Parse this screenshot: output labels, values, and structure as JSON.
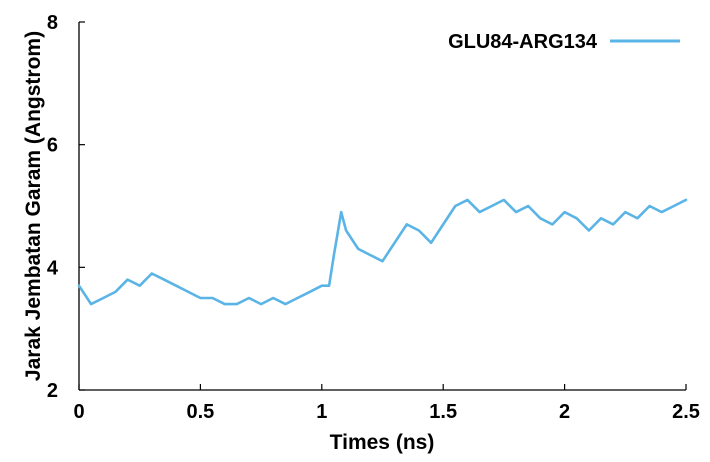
{
  "chart_data": {
    "type": "line",
    "xlabel": "Times (ns)",
    "ylabel": "Jarak Jembatan Garam (Angstrom)",
    "xlim": [
      0,
      2.5
    ],
    "ylim": [
      2,
      8
    ],
    "xticks": [
      {
        "v": 0,
        "label": "0"
      },
      {
        "v": 0.5,
        "label": "0.5"
      },
      {
        "v": 1,
        "label": "1"
      },
      {
        "v": 1.5,
        "label": "1.5"
      },
      {
        "v": 2,
        "label": "2"
      },
      {
        "v": 2.5,
        "label": "2.5"
      }
    ],
    "yticks": [
      {
        "v": 2,
        "label": "2"
      },
      {
        "v": 4,
        "label": "4"
      },
      {
        "v": 6,
        "label": "6"
      },
      {
        "v": 8,
        "label": "8"
      }
    ],
    "grid": false,
    "legend_position": "top-right",
    "series": [
      {
        "name": "GLU84-ARG134",
        "color": "#5ab4e5",
        "x": [
          0,
          0.05,
          0.1,
          0.15,
          0.2,
          0.25,
          0.3,
          0.35,
          0.4,
          0.45,
          0.5,
          0.55,
          0.6,
          0.65,
          0.7,
          0.75,
          0.8,
          0.85,
          0.9,
          0.95,
          1.0,
          1.03,
          1.05,
          1.08,
          1.1,
          1.15,
          1.2,
          1.25,
          1.3,
          1.35,
          1.4,
          1.45,
          1.5,
          1.55,
          1.6,
          1.65,
          1.7,
          1.75,
          1.8,
          1.85,
          1.9,
          1.95,
          2.0,
          2.05,
          2.1,
          2.15,
          2.2,
          2.25,
          2.3,
          2.35,
          2.4,
          2.45,
          2.5
        ],
        "y": [
          3.7,
          3.4,
          3.5,
          3.6,
          3.8,
          3.7,
          3.9,
          3.8,
          3.7,
          3.6,
          3.5,
          3.5,
          3.4,
          3.4,
          3.5,
          3.4,
          3.5,
          3.4,
          3.5,
          3.6,
          3.7,
          3.7,
          4.2,
          4.9,
          4.6,
          4.3,
          4.2,
          4.1,
          4.4,
          4.7,
          4.6,
          4.4,
          4.7,
          5.0,
          5.1,
          4.9,
          5.0,
          5.1,
          4.9,
          5.0,
          4.8,
          4.7,
          4.9,
          4.8,
          4.6,
          4.8,
          4.7,
          4.9,
          4.8,
          5.0,
          4.9,
          5.0,
          5.1
        ]
      }
    ]
  }
}
